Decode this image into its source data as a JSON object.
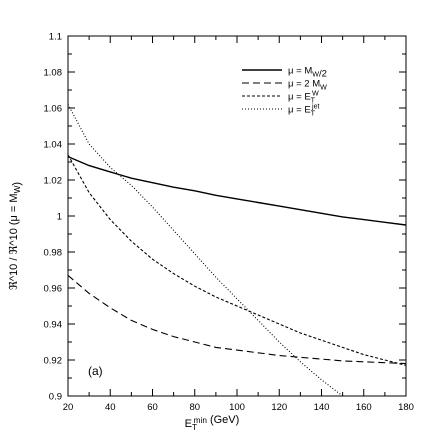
{
  "chart_data": {
    "type": "line",
    "panel_label": "(a)",
    "xlabel": "E_T^min (GeV)",
    "ylabel": "ℜ^10 / ℜ^10 (μ = M_W)",
    "xlim": [
      20,
      180
    ],
    "ylim": [
      0.9,
      1.1
    ],
    "xticks": [
      20,
      40,
      60,
      80,
      100,
      120,
      140,
      160,
      180
    ],
    "yticks": [
      0.9,
      0.92,
      0.94,
      0.96,
      0.98,
      1,
      1.02,
      1.04,
      1.06,
      1.08,
      1.1
    ],
    "grid": false,
    "legend_position": "top-right",
    "series": [
      {
        "name": "μ = M_W/2",
        "style": "solid",
        "x": [
          20,
          30,
          40,
          50,
          60,
          70,
          80,
          90,
          100,
          110,
          120,
          130,
          140,
          150,
          160,
          170,
          180
        ],
        "y": [
          1.033,
          1.028,
          1.0245,
          1.021,
          1.0185,
          1.016,
          1.014,
          1.0115,
          1.0095,
          1.0075,
          1.0055,
          1.0035,
          1.0015,
          0.9995,
          0.998,
          0.9965,
          0.995
        ]
      },
      {
        "name": "μ = 2 M_W",
        "style": "dashed",
        "x": [
          20,
          30,
          40,
          50,
          60,
          70,
          80,
          90,
          100,
          110,
          120,
          130,
          140,
          150,
          160,
          170,
          180
        ],
        "y": [
          0.967,
          0.957,
          0.949,
          0.942,
          0.937,
          0.933,
          0.93,
          0.927,
          0.9255,
          0.924,
          0.9225,
          0.9215,
          0.9205,
          0.9195,
          0.919,
          0.9185,
          0.918
        ]
      },
      {
        "name": "μ = E_T^W",
        "style": "short-dashed",
        "x": [
          20,
          30,
          40,
          50,
          60,
          70,
          80,
          90,
          100,
          110,
          120,
          130,
          140,
          150,
          160,
          170,
          180
        ],
        "y": [
          1.034,
          1.013,
          0.998,
          0.986,
          0.976,
          0.968,
          0.961,
          0.955,
          0.95,
          0.945,
          0.94,
          0.935,
          0.931,
          0.927,
          0.923,
          0.92,
          0.917
        ]
      },
      {
        "name": "μ = E_T^jet",
        "style": "dotted",
        "x": [
          20,
          30,
          40,
          50,
          60,
          70,
          80,
          90,
          100,
          110,
          120,
          130,
          140,
          150,
          155
        ],
        "y": [
          1.062,
          1.04,
          1.027,
          1.017,
          1.005,
          0.992,
          0.979,
          0.966,
          0.954,
          0.942,
          0.93,
          0.919,
          0.909,
          0.9,
          0.896
        ]
      }
    ]
  }
}
